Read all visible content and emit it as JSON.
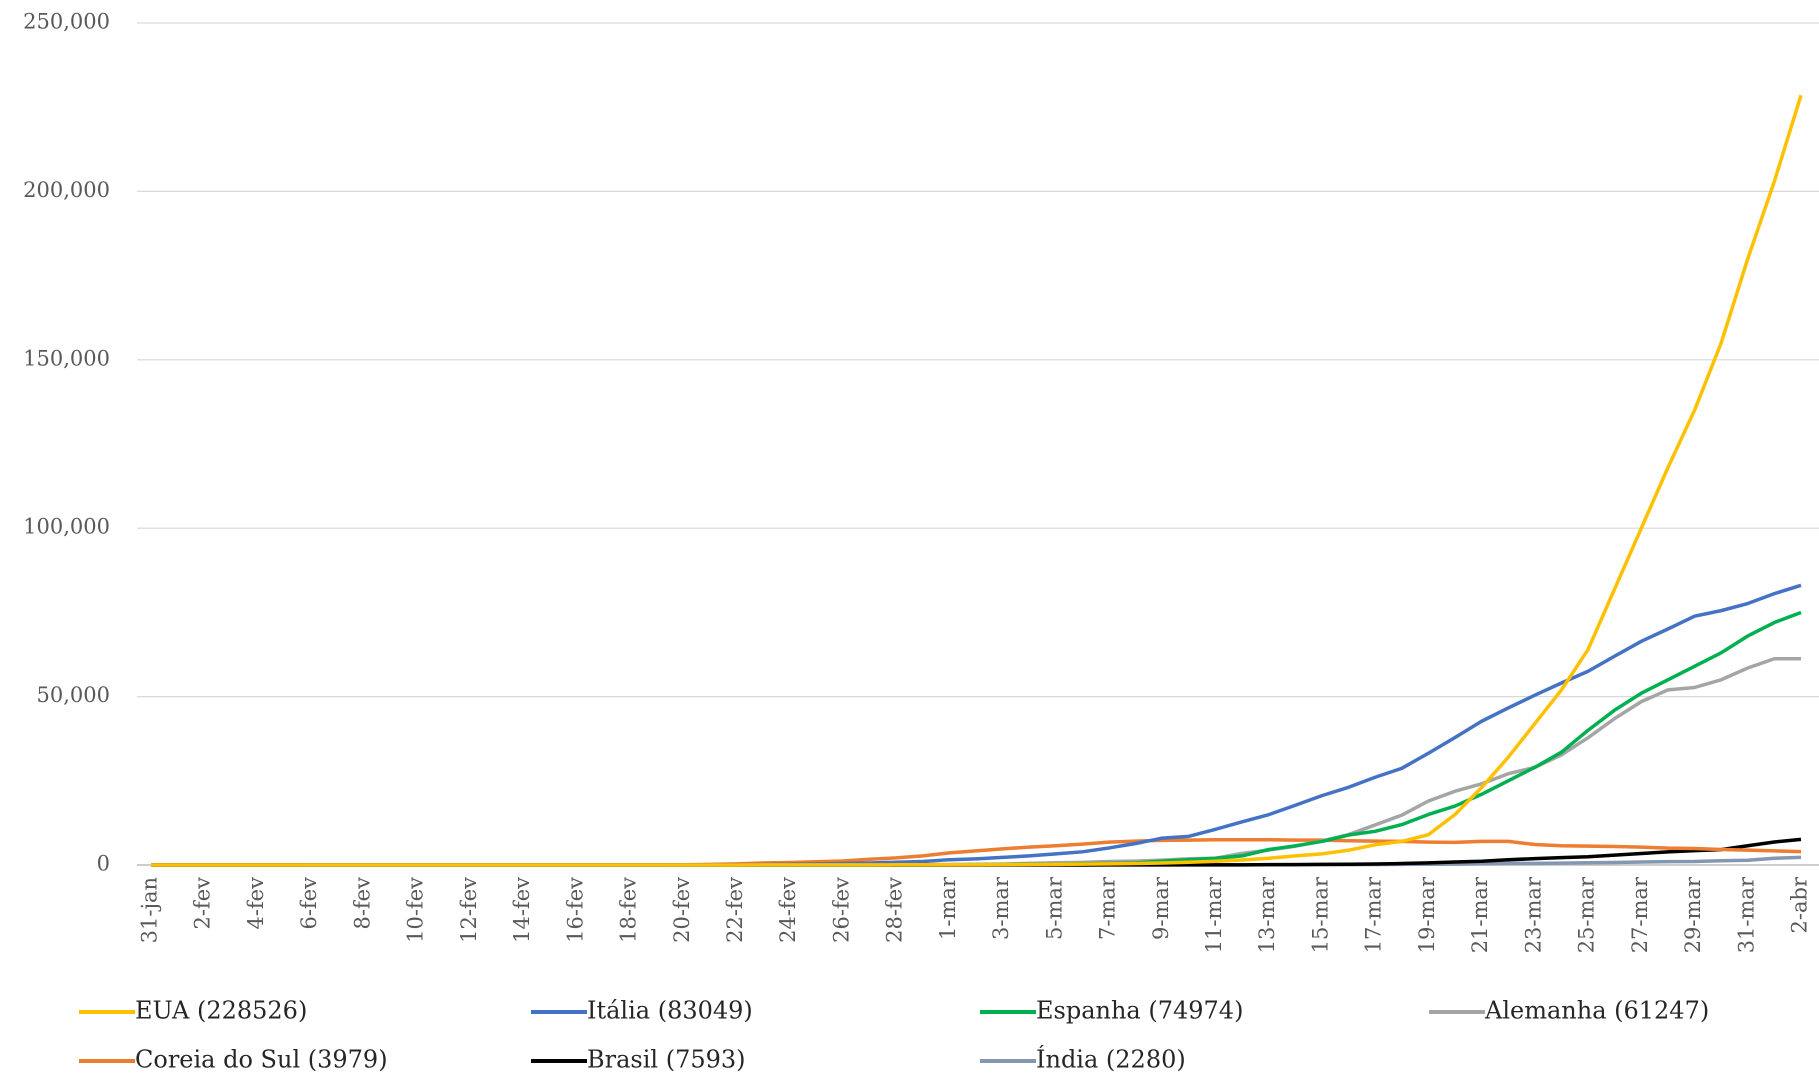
{
  "chart_data": {
    "type": "line",
    "categories": [
      "31-jan",
      null,
      "2-fev",
      null,
      "4-fev",
      null,
      "6-fev",
      null,
      "8-fev",
      null,
      "10-fev",
      null,
      "12-fev",
      null,
      "14-fev",
      null,
      "16-fev",
      null,
      "18-fev",
      null,
      "20-fev",
      null,
      "22-fev",
      null,
      "24-fev",
      null,
      "26-fev",
      null,
      "28-fev",
      null,
      "1-mar",
      null,
      "3-mar",
      null,
      "5-mar",
      null,
      "7-mar",
      null,
      "9-mar",
      null,
      "11-mar",
      null,
      "13-mar",
      null,
      "15-mar",
      null,
      "17-mar",
      null,
      "19-mar",
      null,
      "21-mar",
      null,
      "23-mar",
      null,
      "25-mar",
      null,
      "27-mar",
      null,
      "29-mar",
      null,
      "31-mar",
      null,
      "2-abr"
    ],
    "ylim": [
      0,
      250000
    ],
    "yticks": [
      0,
      {
        "value": 50000,
        "label": "50,000"
      },
      {
        "value": 100000,
        "label": "100,000"
      },
      {
        "value": 150000,
        "label": "150,000"
      },
      {
        "value": 200000,
        "label": "200,000"
      },
      {
        "value": 250000,
        "label": "250,000"
      }
    ],
    "grid": true,
    "legend": "bottom",
    "series": [
      {
        "name": "EUA (228526)",
        "color": "#FFC000",
        "values": [
          6,
          7,
          7,
          10,
          10,
          11,
          11,
          11,
          11,
          11,
          11,
          12,
          12,
          13,
          13,
          13,
          13,
          13,
          13,
          13,
          13,
          14,
          14,
          34,
          34,
          34,
          48,
          53,
          56,
          60,
          70,
          80,
          100,
          130,
          180,
          250,
          350,
          450,
          600,
          800,
          1100,
          1500,
          2000,
          2700,
          3300,
          4400,
          6000,
          7000,
          9000,
          15000,
          23000,
          32000,
          42000,
          52000,
          64000,
          82000,
          100000,
          118000,
          135000,
          155000,
          180000,
          203000,
          228526
        ]
      },
      {
        "name": "Itália (83049)",
        "color": "#4472C4",
        "values": [
          2,
          2,
          2,
          2,
          2,
          2,
          2,
          3,
          3,
          3,
          3,
          3,
          3,
          3,
          3,
          3,
          3,
          3,
          3,
          3,
          3,
          17,
          76,
          150,
          221,
          311,
          438,
          593,
          821,
          1049,
          1577,
          1835,
          2263,
          2706,
          3296,
          3916,
          5061,
          6387,
          7985,
          8514,
          10590,
          12839,
          14955,
          17750,
          20603,
          23073,
          26062,
          28710,
          33190,
          37860,
          42681,
          46638,
          50418,
          54030,
          57521,
          62013,
          66414,
          70065,
          73880,
          75528,
          77635,
          80572,
          83049
        ]
      },
      {
        "name": "Espanha (74974)",
        "color": "#00B050",
        "values": [
          0,
          1,
          1,
          1,
          1,
          1,
          1,
          1,
          1,
          2,
          2,
          2,
          2,
          2,
          2,
          2,
          2,
          2,
          2,
          2,
          2,
          2,
          2,
          2,
          3,
          7,
          11,
          15,
          30,
          43,
          81,
          112,
          150,
          205,
          240,
          370,
          460,
          620,
          1160,
          1550,
          2000,
          2700,
          4600,
          5700,
          7000,
          8900,
          10000,
          12000,
          15000,
          17500,
          21000,
          25000,
          29000,
          33500,
          40000,
          46000,
          51000,
          55000,
          59000,
          63000,
          68000,
          72000,
          74974
        ]
      },
      {
        "name": "Alemanha (61247)",
        "color": "#A5A5A5",
        "values": [
          5,
          8,
          10,
          12,
          12,
          12,
          12,
          13,
          14,
          14,
          14,
          16,
          16,
          16,
          16,
          16,
          16,
          16,
          16,
          16,
          16,
          16,
          16,
          16,
          16,
          21,
          26,
          48,
          60,
          114,
          145,
          180,
          246,
          466,
          656,
          780,
          1025,
          1160,
          1440,
          1860,
          2010,
          3470,
          4430,
          5580,
          7150,
          9040,
          11900,
          14800,
          19000,
          21900,
          24100,
          27100,
          29000,
          32700,
          37800,
          43500,
          48500,
          52000,
          52700,
          55000,
          58500,
          61247,
          61247
        ]
      },
      {
        "name": "Coreia do Sul (3979)",
        "color": "#ED7D31",
        "values": [
          11,
          12,
          15,
          15,
          16,
          18,
          21,
          23,
          24,
          24,
          25,
          26,
          21,
          21,
          20,
          19,
          19,
          21,
          21,
          40,
          70,
          170,
          330,
          580,
          740,
          950,
          1200,
          1700,
          2100,
          2700,
          3600,
          4200,
          4800,
          5300,
          5700,
          6200,
          6800,
          7100,
          7300,
          7400,
          7500,
          7500,
          7500,
          7400,
          7400,
          7200,
          7100,
          7000,
          6800,
          6700,
          7000,
          7000,
          6100,
          5700,
          5600,
          5500,
          5300,
          5000,
          4900,
          4600,
          4400,
          4200,
          3979
        ]
      },
      {
        "name": "Brasil (7593)",
        "color": "#000000",
        "values": [
          0,
          0,
          0,
          0,
          0,
          0,
          0,
          0,
          0,
          0,
          0,
          0,
          0,
          0,
          0,
          0,
          0,
          0,
          0,
          0,
          0,
          0,
          0,
          0,
          0,
          0,
          1,
          1,
          1,
          2,
          2,
          2,
          2,
          3,
          7,
          13,
          19,
          25,
          25,
          30,
          34,
          52,
          98,
          121,
          200,
          234,
          291,
          428,
          621,
          904,
          1128,
          1546,
          1891,
          2201,
          2433,
          2915,
          3417,
          3904,
          4256,
          4579,
          5717,
          6836,
          7593
        ]
      },
      {
        "name": "Índia (2280)",
        "color": "#8497B0",
        "values": [
          1,
          1,
          2,
          3,
          3,
          3,
          3,
          3,
          3,
          3,
          3,
          3,
          3,
          3,
          3,
          3,
          3,
          3,
          3,
          3,
          3,
          3,
          3,
          3,
          3,
          3,
          3,
          3,
          3,
          3,
          3,
          5,
          6,
          28,
          30,
          31,
          34,
          39,
          43,
          56,
          62,
          73,
          82,
          100,
          108,
          128,
          148,
          173,
          209,
          278,
          361,
          468,
          487,
          571,
          657,
          727,
          887,
          987,
          1024,
          1251,
          1397,
          1998,
          2280
        ]
      }
    ]
  }
}
